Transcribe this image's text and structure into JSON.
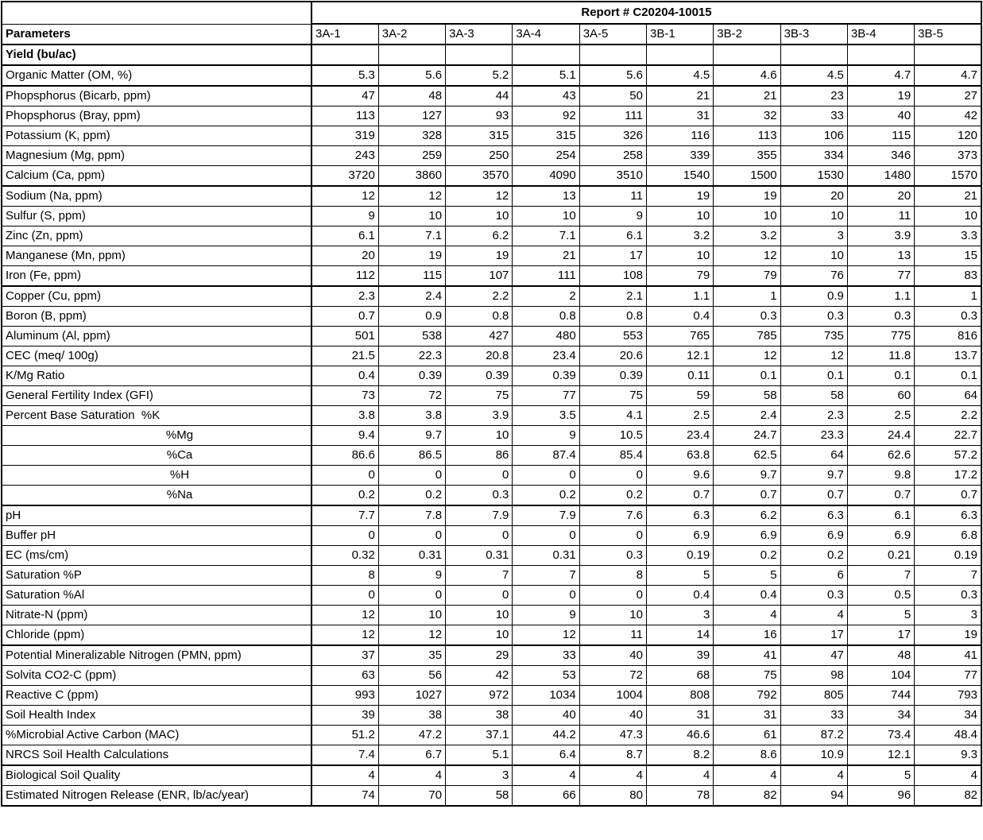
{
  "report": {
    "title": "Report # C20204-10015"
  },
  "table": {
    "param_header": "Parameters",
    "columns": [
      "3A-1",
      "3A-2",
      "3A-3",
      "3A-4",
      "3A-5",
      "3B-1",
      "3B-2",
      "3B-3",
      "3B-4",
      "3B-5"
    ],
    "rows": [
      {
        "label": "Yield (bu/ac)",
        "bold": true,
        "sep": true,
        "values": [
          "",
          "",
          "",
          "",
          "",
          "",
          "",
          "",
          "",
          ""
        ]
      },
      {
        "label": "Organic Matter (OM, %)",
        "sep": true,
        "values": [
          5.3,
          5.6,
          5.2,
          5.1,
          5.6,
          4.5,
          4.6,
          4.5,
          4.7,
          4.7
        ]
      },
      {
        "label": "Phopsphorus (Bicarb, ppm)",
        "values": [
          47,
          48,
          44,
          43,
          50,
          21,
          21,
          23,
          19,
          27
        ]
      },
      {
        "label": "Phopsphorus (Bray, ppm)",
        "values": [
          113,
          127,
          93,
          92,
          111,
          31,
          32,
          33,
          40,
          42
        ]
      },
      {
        "label": "Potassium (K, ppm)",
        "values": [
          319,
          328,
          315,
          315,
          326,
          116,
          113,
          106,
          115,
          120
        ]
      },
      {
        "label": "Magnesium (Mg, ppm)",
        "values": [
          243,
          259,
          250,
          254,
          258,
          339,
          355,
          334,
          346,
          373
        ]
      },
      {
        "label": "Calcium (Ca, ppm)",
        "sep": true,
        "values": [
          3720,
          3860,
          3570,
          4090,
          3510,
          1540,
          1500,
          1530,
          1480,
          1570
        ]
      },
      {
        "label": "Sodium (Na, ppm)",
        "values": [
          12,
          12,
          12,
          13,
          11,
          19,
          19,
          20,
          20,
          21
        ]
      },
      {
        "label": "Sulfur (S, ppm)",
        "values": [
          9,
          10,
          10,
          10,
          9,
          10,
          10,
          10,
          11,
          10
        ]
      },
      {
        "label": "Zinc (Zn, ppm)",
        "values": [
          6.1,
          7.1,
          6.2,
          7.1,
          6.1,
          3.2,
          3.2,
          3,
          3.9,
          3.3
        ]
      },
      {
        "label": "Manganese (Mn, ppm)",
        "values": [
          20,
          19,
          19,
          21,
          17,
          10,
          12,
          10,
          13,
          15
        ]
      },
      {
        "label": "Iron (Fe, ppm)",
        "sep": true,
        "values": [
          112,
          115,
          107,
          111,
          108,
          79,
          79,
          76,
          77,
          83
        ]
      },
      {
        "label": "Copper (Cu, ppm)",
        "values": [
          2.3,
          2.4,
          2.2,
          2,
          2.1,
          1.1,
          1,
          0.9,
          1.1,
          1
        ]
      },
      {
        "label": "Boron (B, ppm)",
        "values": [
          0.7,
          0.9,
          0.8,
          0.8,
          0.8,
          0.4,
          0.3,
          0.3,
          0.3,
          0.3
        ]
      },
      {
        "label": "Aluminum (Al, ppm)",
        "values": [
          501,
          538,
          427,
          480,
          553,
          765,
          785,
          735,
          775,
          816
        ]
      },
      {
        "label": "CEC (meq/ 100g)",
        "values": [
          21.5,
          22.3,
          20.8,
          23.4,
          20.6,
          12.1,
          12,
          12,
          11.8,
          13.7
        ]
      },
      {
        "label": "K/Mg Ratio",
        "values": [
          0.4,
          0.39,
          0.39,
          0.39,
          0.39,
          0.11,
          0.1,
          0.1,
          0.1,
          0.1
        ]
      },
      {
        "label": "General Fertility Index (GFI)",
        "values": [
          73,
          72,
          75,
          77,
          75,
          59,
          58,
          58,
          60,
          64
        ]
      },
      {
        "label": "Percent Base Saturation  %K",
        "values": [
          3.8,
          3.8,
          3.9,
          3.5,
          4.1,
          2.5,
          2.4,
          2.3,
          2.5,
          2.2
        ]
      },
      {
        "label": "%Mg",
        "sub": true,
        "values": [
          9.4,
          9.7,
          10,
          9,
          10.5,
          23.4,
          24.7,
          23.3,
          24.4,
          22.7
        ]
      },
      {
        "label": "%Ca",
        "sub": true,
        "values": [
          86.6,
          86.5,
          86,
          87.4,
          85.4,
          63.8,
          62.5,
          64,
          62.6,
          57.2
        ]
      },
      {
        "label": "%H",
        "sub": true,
        "values": [
          0,
          0,
          0,
          0,
          0,
          9.6,
          9.7,
          9.7,
          9.8,
          17.2
        ]
      },
      {
        "label": "%Na",
        "sub": true,
        "sep": true,
        "values": [
          0.2,
          0.2,
          0.3,
          0.2,
          0.2,
          0.7,
          0.7,
          0.7,
          0.7,
          0.7
        ]
      },
      {
        "label": "pH",
        "values": [
          7.7,
          7.8,
          7.9,
          7.9,
          7.6,
          6.3,
          6.2,
          6.3,
          6.1,
          6.3
        ]
      },
      {
        "label": "Buffer pH",
        "values": [
          0,
          0,
          0,
          0,
          0,
          6.9,
          6.9,
          6.9,
          6.9,
          6.8
        ]
      },
      {
        "label": "EC (ms/cm)",
        "values": [
          0.32,
          0.31,
          0.31,
          0.31,
          0.3,
          0.19,
          0.2,
          0.2,
          0.21,
          0.19
        ]
      },
      {
        "label": "Saturation %P",
        "values": [
          8,
          9,
          7,
          7,
          8,
          5,
          5,
          6,
          7,
          7
        ]
      },
      {
        "label": "Saturation %Al",
        "values": [
          0,
          0,
          0,
          0,
          0,
          0.4,
          0.4,
          0.3,
          0.5,
          0.3
        ]
      },
      {
        "label": "Nitrate-N (ppm)",
        "values": [
          12,
          10,
          10,
          9,
          10,
          3,
          4,
          4,
          5,
          3
        ]
      },
      {
        "label": "Chloride (ppm)",
        "sep": true,
        "values": [
          12,
          12,
          10,
          12,
          11,
          14,
          16,
          17,
          17,
          19
        ]
      },
      {
        "label": "Potential Mineralizable Nitrogen (PMN, ppm)",
        "values": [
          37,
          35,
          29,
          33,
          40,
          39,
          41,
          47,
          48,
          41
        ]
      },
      {
        "label": "Solvita CO2-C (ppm)",
        "values": [
          63,
          56,
          42,
          53,
          72,
          68,
          75,
          98,
          104,
          77
        ]
      },
      {
        "label": "Reactive C (ppm)",
        "values": [
          993,
          1027,
          972,
          1034,
          1004,
          808,
          792,
          805,
          744,
          793
        ]
      },
      {
        "label": "Soil Health Index",
        "values": [
          39,
          38,
          38,
          40,
          40,
          31,
          31,
          33,
          34,
          34
        ]
      },
      {
        "label": "%Microbial Active Carbon (MAC)",
        "values": [
          51.2,
          47.2,
          37.1,
          44.2,
          47.3,
          46.6,
          61,
          87.2,
          73.4,
          48.4
        ]
      },
      {
        "label": "NRCS Soil Health Calculations",
        "sep": true,
        "values": [
          7.4,
          6.7,
          5.1,
          6.4,
          8.7,
          8.2,
          8.6,
          10.9,
          12.1,
          9.3
        ]
      },
      {
        "label": "Biological Soil Quality",
        "values": [
          4,
          4,
          3,
          4,
          4,
          4,
          4,
          4,
          5,
          4
        ]
      },
      {
        "label": "Estimated Nitrogen Release (ENR, lb/ac/year)",
        "values": [
          74,
          70,
          58,
          66,
          80,
          78,
          82,
          94,
          96,
          82
        ]
      }
    ]
  }
}
